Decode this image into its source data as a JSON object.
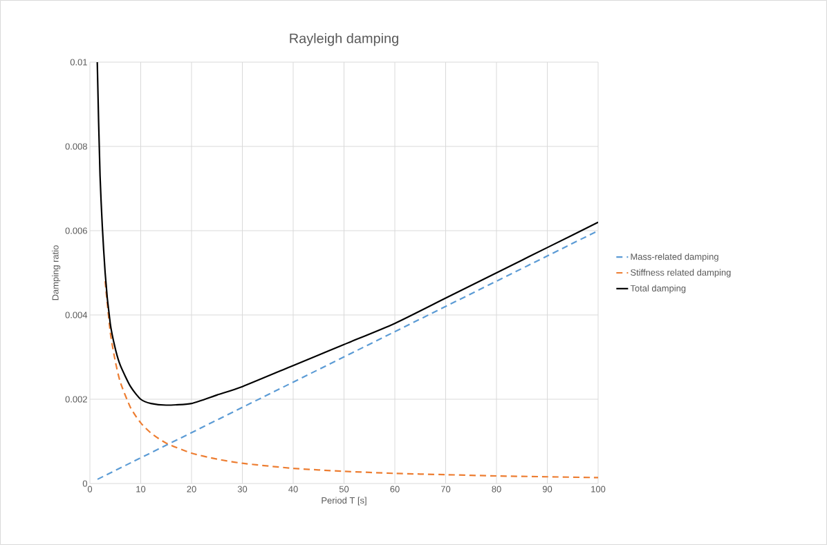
{
  "chart_data": {
    "type": "line",
    "title": "Rayleigh damping",
    "xlabel": "Period T [s]",
    "ylabel": "Damping ratio",
    "xlim": [
      0,
      100
    ],
    "xticks": [
      0,
      10,
      20,
      30,
      40,
      50,
      60,
      70,
      80,
      90,
      100
    ],
    "ylim": [
      0,
      0.01
    ],
    "yticks": [
      0,
      0.002,
      0.004,
      0.006,
      0.008,
      0.01
    ],
    "grid": true,
    "legend": "right",
    "marker": "none",
    "series": [
      {
        "name": "Mass-related damping",
        "color": "#5b9bd5",
        "line_style": "dashed",
        "x": [
          1.5,
          100
        ],
        "values": [
          0.0001,
          0.006
        ]
      },
      {
        "name": "Stiffness related damping",
        "color": "#ed7d31",
        "line_style": "dashed",
        "x": [
          3,
          4,
          5,
          6,
          8,
          10,
          12,
          15,
          20,
          25,
          30,
          40,
          50,
          60,
          70,
          80,
          90,
          100
        ],
        "values": [
          0.0048,
          0.0036,
          0.0029,
          0.0024,
          0.0018,
          0.00144,
          0.0012,
          0.00096,
          0.00072,
          0.00058,
          0.00048,
          0.00036,
          0.00029,
          0.00024,
          0.00021,
          0.00018,
          0.00016,
          0.00014
        ]
      },
      {
        "name": "Total damping",
        "color": "#000000",
        "line_style": "solid",
        "x": [
          1.45,
          2,
          3,
          4,
          5,
          6,
          8,
          10,
          12,
          15,
          20,
          25,
          30,
          40,
          50,
          60,
          70,
          80,
          90,
          100
        ],
        "values": [
          0.01,
          0.0073,
          0.005,
          0.0038,
          0.0032,
          0.0028,
          0.0023,
          0.002,
          0.0019,
          0.00186,
          0.0019,
          0.0021,
          0.0023,
          0.0028,
          0.0033,
          0.0038,
          0.0044,
          0.005,
          0.0056,
          0.0062
        ]
      }
    ]
  }
}
